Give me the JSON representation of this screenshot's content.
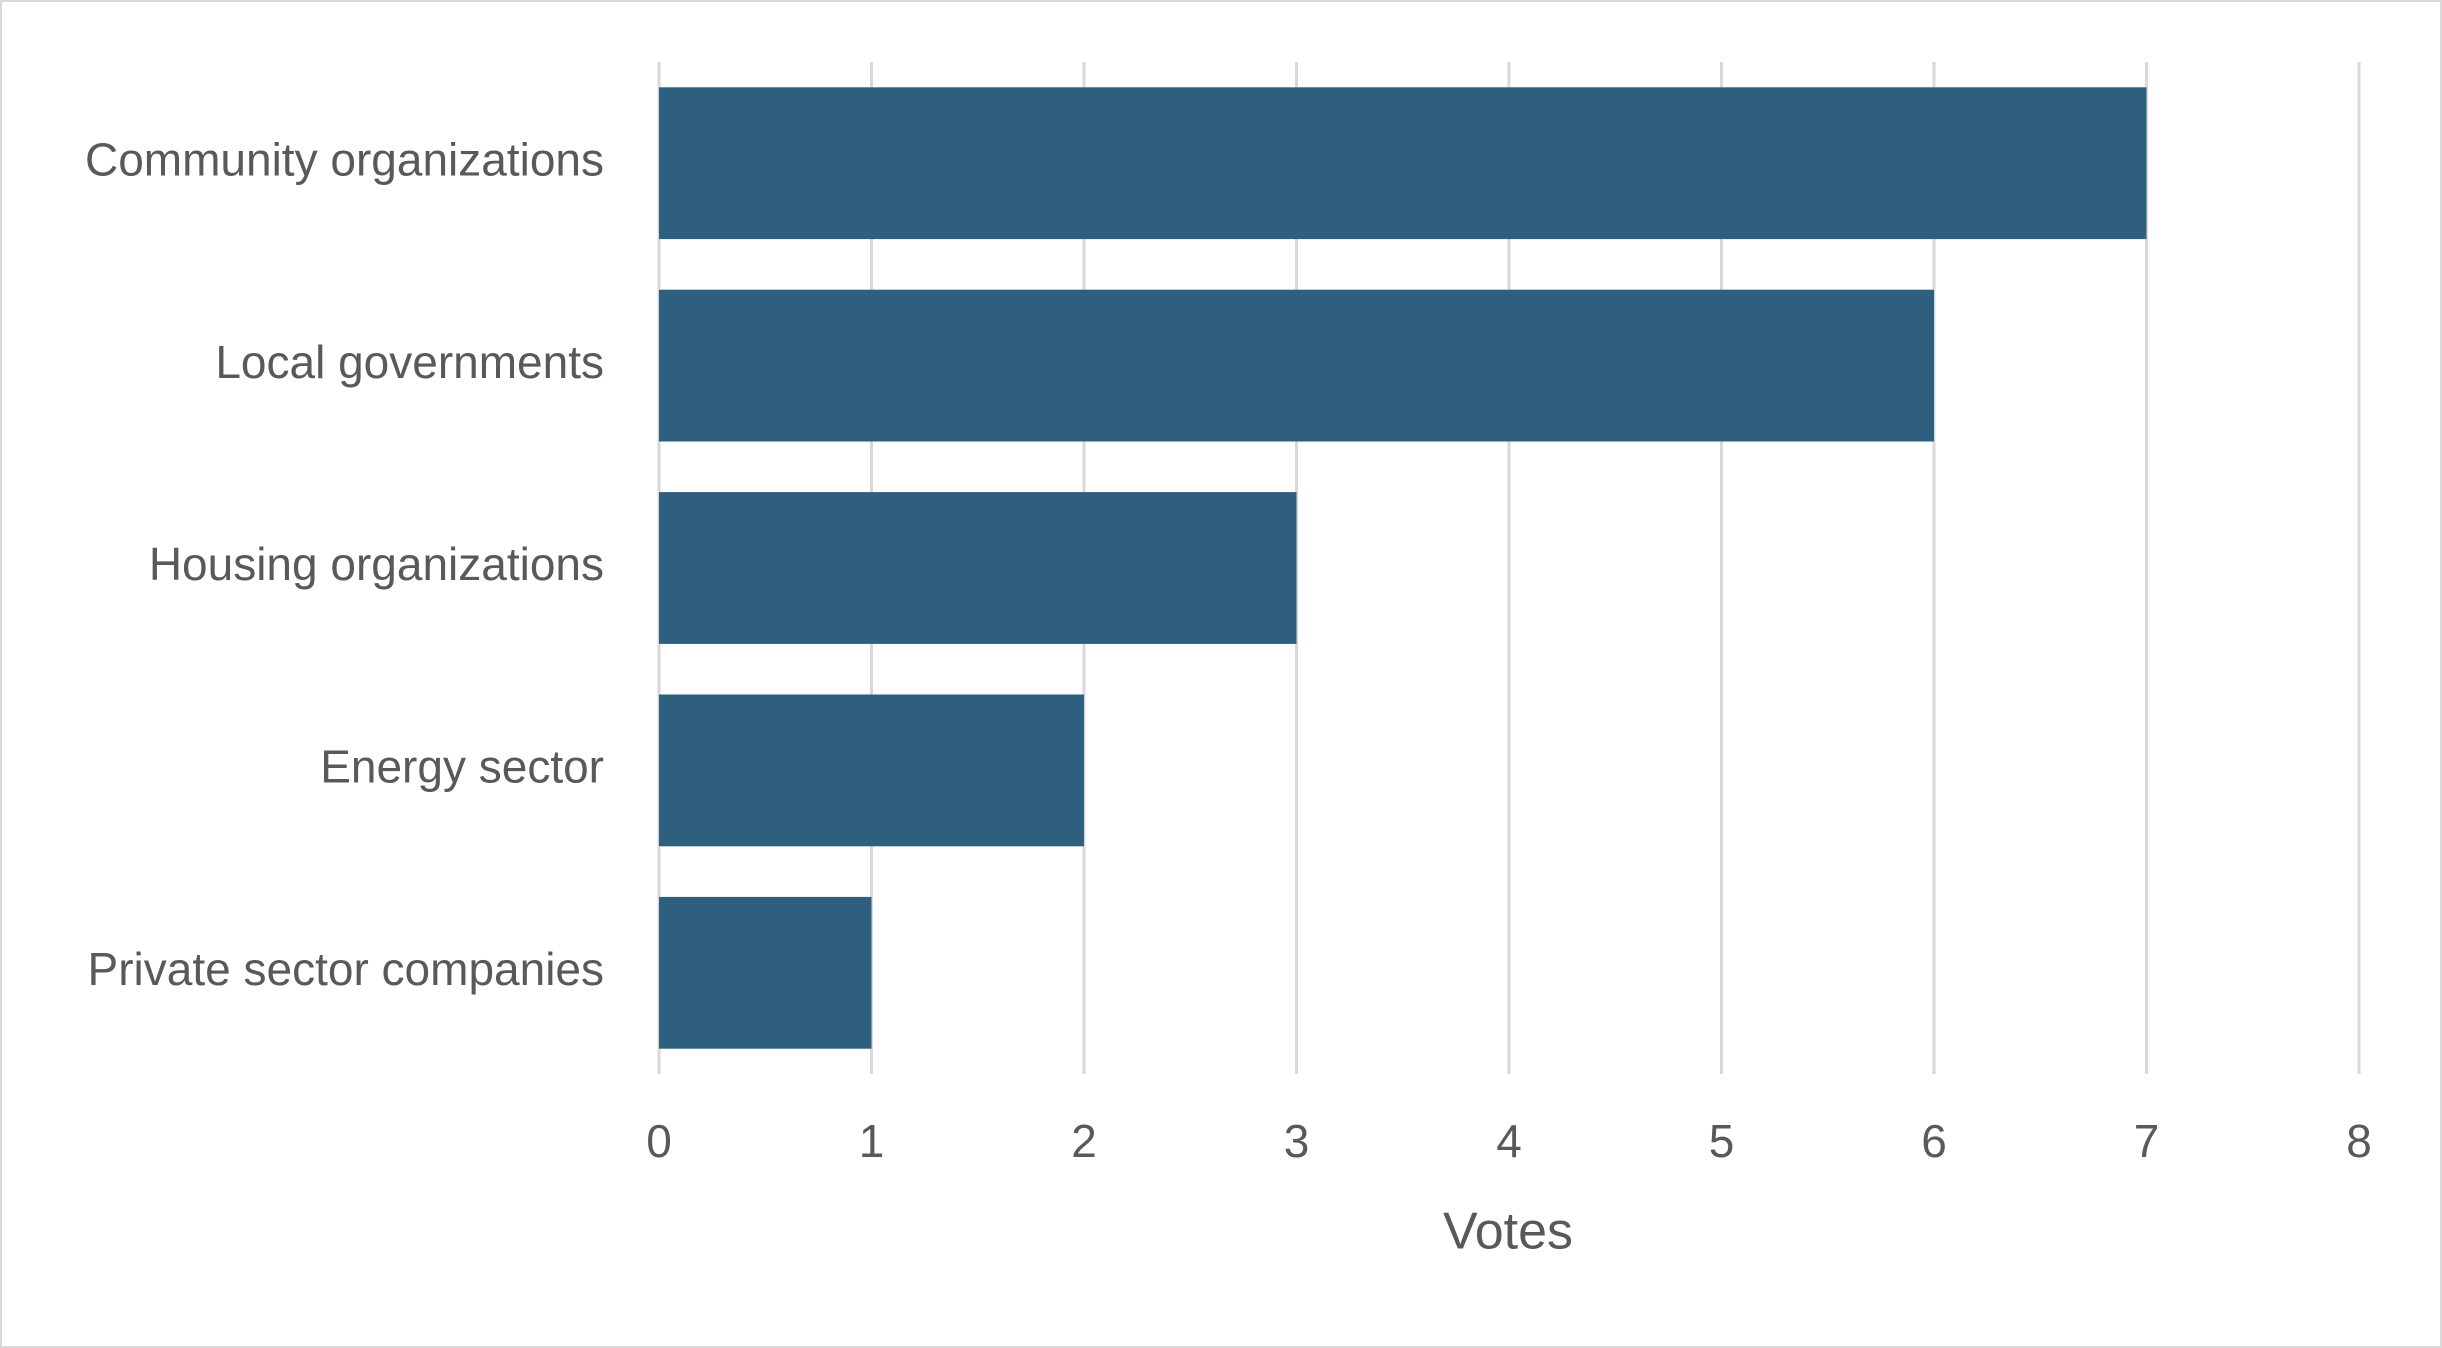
{
  "chart_data": {
    "type": "bar",
    "orientation": "horizontal",
    "categories": [
      "Community organizations",
      "Local governments",
      "Housing organizations",
      "Energy sector",
      "Private sector companies"
    ],
    "values": [
      7,
      6,
      3,
      2,
      1
    ],
    "color": "#2e5f7f",
    "xlabel": "Votes",
    "xlim": [
      0,
      8
    ],
    "xticks": [
      0,
      1,
      2,
      3,
      4,
      5,
      6,
      7,
      8
    ],
    "grid": true
  }
}
